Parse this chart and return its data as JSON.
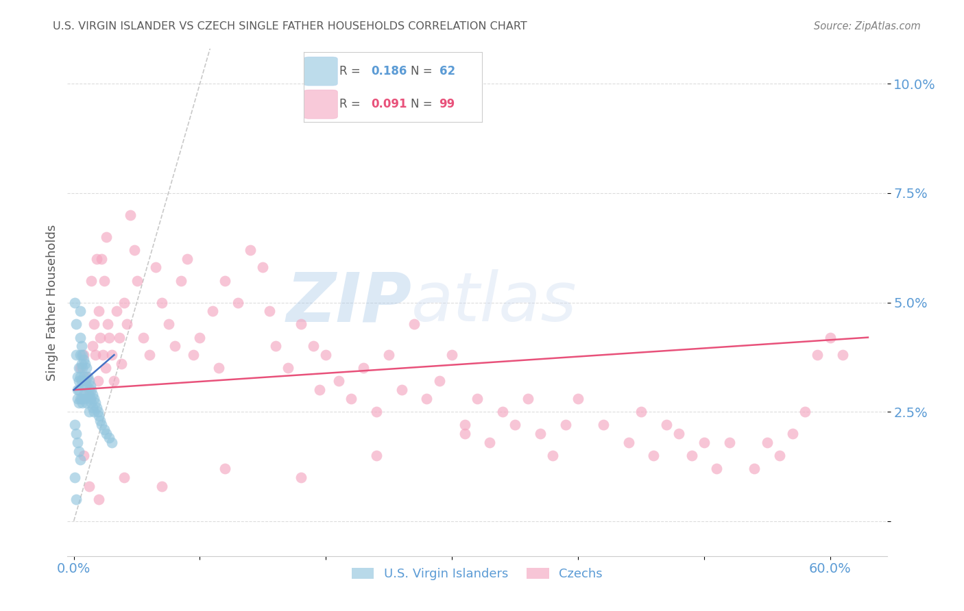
{
  "title": "U.S. VIRGIN ISLANDER VS CZECH SINGLE FATHER HOUSEHOLDS CORRELATION CHART",
  "source": "Source: ZipAtlas.com",
  "ylabel": "Single Father Households",
  "ytick_labels": [
    "",
    "2.5%",
    "5.0%",
    "7.5%",
    "10.0%"
  ],
  "yticks": [
    0.0,
    0.025,
    0.05,
    0.075,
    0.1
  ],
  "xtick_labels": [
    "0.0%",
    "",
    "",
    "",
    "",
    "",
    "60.0%"
  ],
  "xticks": [
    0.0,
    0.1,
    0.2,
    0.3,
    0.4,
    0.5,
    0.6
  ],
  "xlim": [
    -0.005,
    0.645
  ],
  "ylim": [
    -0.008,
    0.108
  ],
  "watermark_zip": "ZIP",
  "watermark_atlas": "atlas",
  "legend_r1": "0.186",
  "legend_n1": "62",
  "legend_r2": "0.091",
  "legend_n2": "99",
  "blue_color": "#92c5de",
  "pink_color": "#f4a6c0",
  "trend_blue": "#4472c4",
  "trend_pink": "#e8517a",
  "ref_line_color": "#bbbbbb",
  "axis_label_color": "#5b9bd5",
  "title_color": "#595959",
  "source_color": "#808080",
  "background_color": "#ffffff",
  "grid_color": "#d9d9d9",
  "blue_x": [
    0.001,
    0.002,
    0.002,
    0.003,
    0.003,
    0.003,
    0.004,
    0.004,
    0.004,
    0.004,
    0.005,
    0.005,
    0.005,
    0.005,
    0.005,
    0.006,
    0.006,
    0.006,
    0.006,
    0.007,
    0.007,
    0.007,
    0.007,
    0.008,
    0.008,
    0.008,
    0.009,
    0.009,
    0.009,
    0.01,
    0.01,
    0.01,
    0.011,
    0.011,
    0.012,
    0.012,
    0.012,
    0.013,
    0.013,
    0.014,
    0.014,
    0.015,
    0.015,
    0.016,
    0.016,
    0.017,
    0.018,
    0.019,
    0.02,
    0.021,
    0.022,
    0.024,
    0.026,
    0.028,
    0.03,
    0.001,
    0.002,
    0.003,
    0.004,
    0.005,
    0.001,
    0.002
  ],
  "blue_y": [
    0.05,
    0.045,
    0.038,
    0.033,
    0.03,
    0.028,
    0.035,
    0.032,
    0.03,
    0.027,
    0.048,
    0.042,
    0.038,
    0.033,
    0.028,
    0.04,
    0.036,
    0.032,
    0.028,
    0.038,
    0.035,
    0.031,
    0.027,
    0.037,
    0.033,
    0.029,
    0.036,
    0.032,
    0.028,
    0.035,
    0.031,
    0.027,
    0.033,
    0.029,
    0.032,
    0.029,
    0.025,
    0.031,
    0.028,
    0.03,
    0.027,
    0.029,
    0.026,
    0.028,
    0.025,
    0.027,
    0.026,
    0.025,
    0.024,
    0.023,
    0.022,
    0.021,
    0.02,
    0.019,
    0.018,
    0.022,
    0.02,
    0.018,
    0.016,
    0.014,
    0.01,
    0.005
  ],
  "pink_x": [
    0.005,
    0.008,
    0.01,
    0.012,
    0.014,
    0.015,
    0.016,
    0.017,
    0.018,
    0.019,
    0.02,
    0.021,
    0.022,
    0.023,
    0.024,
    0.025,
    0.026,
    0.027,
    0.028,
    0.03,
    0.032,
    0.034,
    0.036,
    0.038,
    0.04,
    0.042,
    0.045,
    0.048,
    0.05,
    0.055,
    0.06,
    0.065,
    0.07,
    0.075,
    0.08,
    0.085,
    0.09,
    0.095,
    0.1,
    0.11,
    0.115,
    0.12,
    0.13,
    0.14,
    0.15,
    0.155,
    0.16,
    0.17,
    0.18,
    0.19,
    0.195,
    0.2,
    0.21,
    0.22,
    0.23,
    0.24,
    0.25,
    0.26,
    0.27,
    0.28,
    0.29,
    0.3,
    0.31,
    0.32,
    0.33,
    0.34,
    0.35,
    0.36,
    0.37,
    0.38,
    0.39,
    0.4,
    0.42,
    0.44,
    0.45,
    0.46,
    0.47,
    0.48,
    0.49,
    0.5,
    0.51,
    0.52,
    0.54,
    0.55,
    0.56,
    0.57,
    0.58,
    0.59,
    0.6,
    0.61,
    0.31,
    0.24,
    0.18,
    0.12,
    0.07,
    0.04,
    0.02,
    0.012,
    0.008
  ],
  "pink_y": [
    0.035,
    0.038,
    0.033,
    0.03,
    0.055,
    0.04,
    0.045,
    0.038,
    0.06,
    0.032,
    0.048,
    0.042,
    0.06,
    0.038,
    0.055,
    0.035,
    0.065,
    0.045,
    0.042,
    0.038,
    0.032,
    0.048,
    0.042,
    0.036,
    0.05,
    0.045,
    0.07,
    0.062,
    0.055,
    0.042,
    0.038,
    0.058,
    0.05,
    0.045,
    0.04,
    0.055,
    0.06,
    0.038,
    0.042,
    0.048,
    0.035,
    0.055,
    0.05,
    0.062,
    0.058,
    0.048,
    0.04,
    0.035,
    0.045,
    0.04,
    0.03,
    0.038,
    0.032,
    0.028,
    0.035,
    0.025,
    0.038,
    0.03,
    0.045,
    0.028,
    0.032,
    0.038,
    0.022,
    0.028,
    0.018,
    0.025,
    0.022,
    0.028,
    0.02,
    0.015,
    0.022,
    0.028,
    0.022,
    0.018,
    0.025,
    0.015,
    0.022,
    0.02,
    0.015,
    0.018,
    0.012,
    0.018,
    0.012,
    0.018,
    0.015,
    0.02,
    0.025,
    0.038,
    0.042,
    0.038,
    0.02,
    0.015,
    0.01,
    0.012,
    0.008,
    0.01,
    0.005,
    0.008,
    0.015
  ],
  "ref_line_x": [
    0.0,
    0.11
  ],
  "ref_line_y": [
    0.0,
    0.11
  ],
  "pink_trend_x0": 0.0,
  "pink_trend_x1": 0.63,
  "pink_trend_y0": 0.03,
  "pink_trend_y1": 0.042,
  "blue_trend_x0": 0.0,
  "blue_trend_x1": 0.032,
  "blue_trend_y0": 0.03,
  "blue_trend_y1": 0.038
}
